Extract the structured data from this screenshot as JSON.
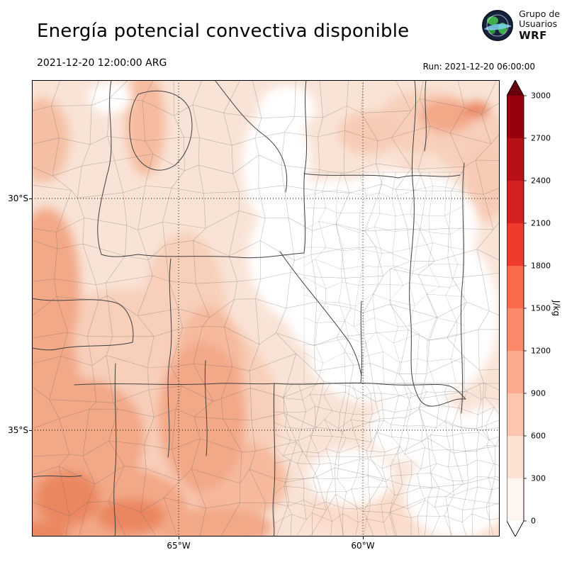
{
  "header": {
    "title": "Energía potencial convectiva disponible",
    "valid_time": "2021-12-20 12:00:00 ARG",
    "run_label": "Run: 2021-12-20 06:00:00",
    "logo": {
      "line1": "Grupo de",
      "line2": "Usuarios",
      "line3": "WRF"
    }
  },
  "map_axes": {
    "lat_labels": [
      "30°S",
      "35°S"
    ],
    "lon_labels": [
      "65°W",
      "60°W"
    ]
  },
  "colorbar": {
    "unit": "J/kg",
    "ticks": [
      "3000",
      "2700",
      "2400",
      "2100",
      "1800",
      "1500",
      "1200",
      "900",
      "600",
      "300",
      "0"
    ],
    "segment_colors_top_to_bottom": [
      "#99000d",
      "#b71117",
      "#d42020",
      "#ef3b2c",
      "#fb6a4a",
      "#fc8a6a",
      "#fcab8e",
      "#fcc6ae",
      "#fde1d2",
      "#fff5f0"
    ],
    "over_color": "#67000d",
    "under_color": "#ffffff"
  },
  "chart_data": {
    "type": "heatmap",
    "title": "Energía potencial convectiva disponible",
    "variable": "CAPE (convective available potential energy)",
    "unit": "J/kg",
    "valid_time": "2021-12-20 12:00:00 ARG",
    "model_run": "2021-12-20 06:00:00",
    "colormap": "Reds, extended with arrows at both ends",
    "levels": [
      0,
      300,
      600,
      900,
      1200,
      1500,
      1800,
      2100,
      2400,
      2700,
      3000
    ],
    "lat_gridlines": [
      "30°S",
      "35°S"
    ],
    "lon_gridlines": [
      "65°W",
      "60°W"
    ],
    "regions": [
      {
        "area": "west edge and southwest (Cuyo / western La Pampa)",
        "value_range_jkg": "600-900"
      },
      {
        "area": "bottom-left corner hotspots",
        "value_range_jkg": "900-1200"
      },
      {
        "area": "northwest and central-west plains",
        "value_range_jkg": "300-600"
      },
      {
        "area": "north-central band and top-left",
        "value_range_jkg": "0-300"
      },
      {
        "area": "center-east (Santiago del Estero / Santa Fe)",
        "value_range_jkg": "0"
      },
      {
        "area": "northeast corner patch",
        "value_range_jkg": "600-900"
      },
      {
        "area": "Buenos Aires province (southeast, fine department grid)",
        "value_range_jkg": "0-300"
      }
    ],
    "overlay": "province and department administrative boundaries of central-northern Argentina"
  }
}
